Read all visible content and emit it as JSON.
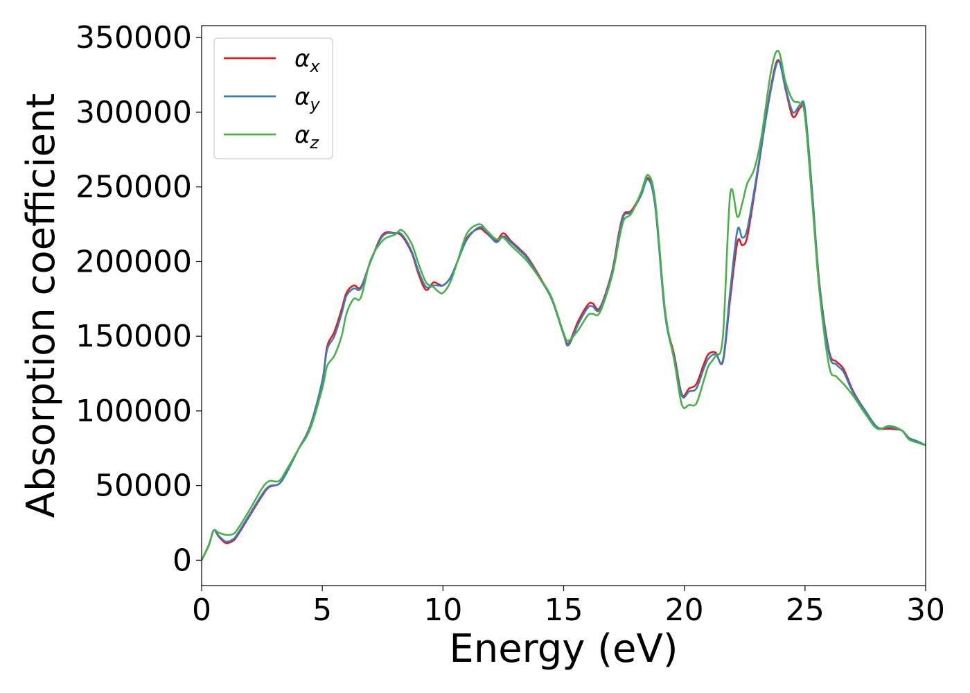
{
  "chart_data": {
    "type": "line",
    "xlabel": "Energy (eV)",
    "ylabel": "Absorption coefficient",
    "xlim": [
      0,
      30
    ],
    "ylim": [
      -17000,
      358000
    ],
    "x_ticks": [
      0,
      5,
      10,
      15,
      20,
      25,
      30
    ],
    "y_ticks": [
      0,
      50000,
      100000,
      150000,
      200000,
      250000,
      300000,
      350000
    ],
    "grid": false,
    "legend_position": "top-left",
    "series": [
      {
        "name": "α_x",
        "symbol": "α",
        "subscript": "x",
        "color": "#e41a1c",
        "x": [
          0,
          0.3,
          0.5,
          0.7,
          1.0,
          1.3,
          1.5,
          2.0,
          2.5,
          2.8,
          3.2,
          3.5,
          4.0,
          4.5,
          5.0,
          5.2,
          5.5,
          5.8,
          6.0,
          6.3,
          6.6,
          7.0,
          7.5,
          8.0,
          8.3,
          8.7,
          9.0,
          9.3,
          9.6,
          9.8,
          10.0,
          10.3,
          10.6,
          11.0,
          11.5,
          11.8,
          12.2,
          12.5,
          12.8,
          13.2,
          13.5,
          14.0,
          14.5,
          15.0,
          15.2,
          15.6,
          16.0,
          16.2,
          16.5,
          17.0,
          17.3,
          17.5,
          17.8,
          18.2,
          18.5,
          18.8,
          19.2,
          19.6,
          19.9,
          20.2,
          20.5,
          20.8,
          21.0,
          21.3,
          21.6,
          21.9,
          22.2,
          22.4,
          22.6,
          22.9,
          23.2,
          23.6,
          23.9,
          24.2,
          24.5,
          24.8,
          25.0,
          25.3,
          25.6,
          26.0,
          26.3,
          26.6,
          27.0,
          27.5,
          28.0,
          28.5,
          29.0,
          29.3,
          29.6,
          30.0
        ],
        "values": [
          0,
          10000,
          20000,
          16000,
          11500,
          13000,
          17000,
          30000,
          43000,
          49000,
          51000,
          58000,
          74000,
          90000,
          120000,
          143000,
          153000,
          168000,
          179000,
          184000,
          183000,
          200000,
          218000,
          219000,
          217000,
          206000,
          191000,
          181000,
          186000,
          185000,
          184000,
          189000,
          200000,
          216000,
          222000,
          219000,
          214000,
          219000,
          214000,
          208000,
          203000,
          190000,
          175000,
          152000,
          145000,
          160000,
          171000,
          172000,
          169000,
          193000,
          220000,
          232000,
          234000,
          245000,
          256000,
          237000,
          166000,
          136000,
          111000,
          115000,
          118000,
          131000,
          138000,
          139000,
          133000,
          175000,
          213000,
          211000,
          216000,
          245000,
          277000,
          318000,
          335000,
          315000,
          297000,
          303000,
          301000,
          246000,
          185000,
          140000,
          133000,
          128000,
          113000,
          100000,
          89000,
          88000,
          87000,
          82000,
          80000,
          77000
        ]
      },
      {
        "name": "α_y",
        "symbol": "α",
        "subscript": "y",
        "color": "#377eb8",
        "x": [
          0,
          0.3,
          0.5,
          0.7,
          1.0,
          1.3,
          1.5,
          2.0,
          2.5,
          2.8,
          3.2,
          3.5,
          4.0,
          4.5,
          5.0,
          5.2,
          5.5,
          5.8,
          6.0,
          6.3,
          6.6,
          7.0,
          7.5,
          8.0,
          8.3,
          8.7,
          9.0,
          9.3,
          9.6,
          9.8,
          10.0,
          10.3,
          10.6,
          11.0,
          11.5,
          11.8,
          12.2,
          12.5,
          12.8,
          13.2,
          13.5,
          14.0,
          14.5,
          15.0,
          15.2,
          15.6,
          16.0,
          16.2,
          16.5,
          17.0,
          17.3,
          17.5,
          17.8,
          18.2,
          18.5,
          18.8,
          19.2,
          19.6,
          19.9,
          20.2,
          20.5,
          20.8,
          21.0,
          21.3,
          21.6,
          21.9,
          22.2,
          22.4,
          22.6,
          22.9,
          23.2,
          23.6,
          23.9,
          24.2,
          24.5,
          24.8,
          25.0,
          25.3,
          25.6,
          26.0,
          26.3,
          26.6,
          27.0,
          27.5,
          28.0,
          28.5,
          29.0,
          29.3,
          29.6,
          30.0
        ],
        "values": [
          0,
          10000,
          20000,
          16500,
          12500,
          14000,
          18000,
          31000,
          44000,
          49500,
          51000,
          58000,
          74000,
          90000,
          120000,
          141000,
          150000,
          165000,
          177000,
          182000,
          182000,
          200000,
          217000,
          219000,
          218000,
          207000,
          193000,
          183000,
          184000,
          184000,
          184000,
          189000,
          200000,
          215000,
          223000,
          220000,
          213000,
          217000,
          213000,
          207000,
          202000,
          189000,
          175000,
          151000,
          144000,
          158000,
          169000,
          170000,
          168000,
          192000,
          218000,
          231000,
          233000,
          244000,
          255000,
          236000,
          165000,
          134000,
          110000,
          113000,
          115000,
          128000,
          135000,
          138000,
          134000,
          180000,
          221000,
          216000,
          221000,
          248000,
          278000,
          316000,
          334000,
          316000,
          300000,
          305000,
          302000,
          246000,
          184000,
          138000,
          131000,
          126000,
          112000,
          100000,
          89000,
          89000,
          87000,
          82000,
          80000,
          77000
        ]
      },
      {
        "name": "α_z",
        "symbol": "α",
        "subscript": "z",
        "color": "#4daf4a",
        "x": [
          0,
          0.3,
          0.5,
          0.7,
          1.0,
          1.3,
          1.5,
          2.0,
          2.5,
          2.8,
          3.2,
          3.5,
          4.0,
          4.5,
          5.0,
          5.2,
          5.5,
          5.8,
          6.0,
          6.3,
          6.6,
          7.0,
          7.5,
          8.0,
          8.3,
          8.7,
          9.0,
          9.3,
          9.6,
          9.8,
          10.0,
          10.3,
          10.6,
          11.0,
          11.5,
          11.8,
          12.2,
          12.5,
          12.8,
          13.2,
          13.5,
          14.0,
          14.5,
          15.0,
          15.2,
          15.6,
          16.0,
          16.2,
          16.5,
          17.0,
          17.3,
          17.5,
          17.8,
          18.2,
          18.5,
          18.8,
          19.2,
          19.6,
          19.9,
          20.2,
          20.5,
          20.8,
          21.0,
          21.3,
          21.6,
          21.9,
          22.2,
          22.4,
          22.6,
          22.9,
          23.2,
          23.6,
          23.9,
          24.2,
          24.5,
          24.8,
          25.0,
          25.3,
          25.6,
          26.0,
          26.3,
          26.6,
          27.0,
          27.5,
          28.0,
          28.5,
          29.0,
          29.3,
          29.6,
          30.0
        ],
        "values": [
          0,
          10500,
          20000,
          18500,
          17000,
          17500,
          21000,
          34000,
          48000,
          53000,
          53000,
          60000,
          74000,
          88000,
          115000,
          130000,
          137000,
          150000,
          165000,
          175000,
          176000,
          201000,
          214000,
          218000,
          221000,
          212000,
          198000,
          186000,
          183000,
          180000,
          179000,
          186000,
          200000,
          219000,
          225000,
          221000,
          215000,
          216000,
          211000,
          205000,
          200000,
          189000,
          176000,
          152000,
          147000,
          154000,
          164000,
          165000,
          166000,
          190000,
          215000,
          228000,
          232000,
          246000,
          258000,
          240000,
          168000,
          132000,
          104000,
          104000,
          105000,
          120000,
          130000,
          137000,
          150000,
          245000,
          230000,
          239000,
          252000,
          262000,
          284000,
          328000,
          341000,
          320000,
          308000,
          306000,
          297000,
          240000,
          180000,
          130000,
          123000,
          118000,
          110000,
          98000,
          88000,
          90000,
          87000,
          81000,
          79000,
          77000
        ]
      }
    ]
  }
}
